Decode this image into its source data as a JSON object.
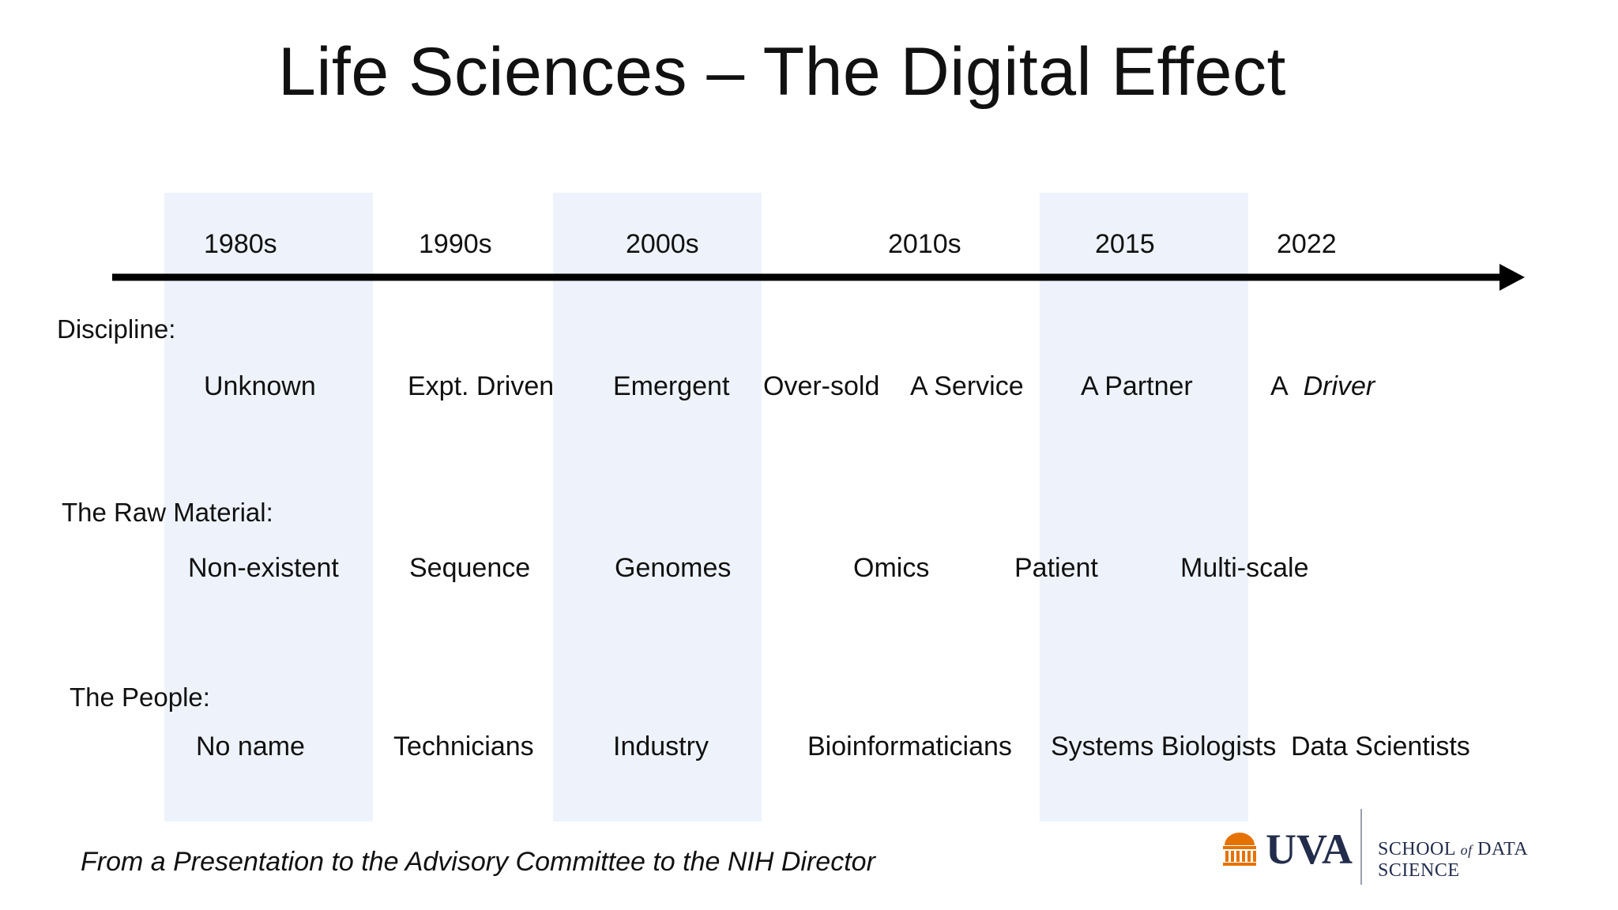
{
  "title": "Life Sciences – The Digital Effect",
  "timeline": {
    "decades": [
      "1980s",
      "1990s",
      "2000s",
      "2010s",
      "2015",
      "2022"
    ]
  },
  "rows": {
    "discipline": {
      "label": "Discipline:",
      "items": [
        "Unknown",
        "Expt. Driven",
        "Emergent",
        "Over-sold",
        "A Service",
        "A Partner"
      ],
      "last_prefix": "A",
      "last_emphasis": "Driver"
    },
    "raw_material": {
      "label": "The Raw Material:",
      "items": [
        "Non-existent",
        "Sequence",
        "Genomes",
        "Omics",
        "Patient",
        "Multi-scale"
      ]
    },
    "people": {
      "label": "The People:",
      "items": [
        "No name",
        "Technicians",
        "Industry",
        "Bioinformaticians",
        "Systems Biologists",
        "Data Scientists"
      ]
    }
  },
  "footnote": "From a Presentation to the Advisory Committee to the NIH Director",
  "logo": {
    "name": "UVA",
    "school_pre": "SCHOOL",
    "school_of": "of",
    "school_post": "DATA SCIENCE"
  },
  "colors": {
    "band": "#eef3fb",
    "line": "#000000",
    "logo_navy": "#232d4b",
    "logo_orange": "#e57200"
  }
}
